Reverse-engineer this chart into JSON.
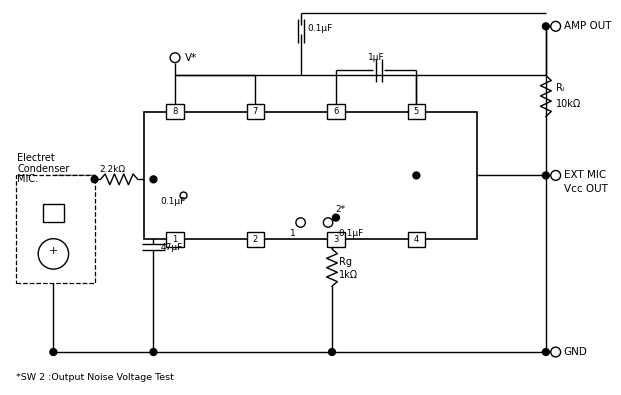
{
  "bg_color": "#ffffff",
  "line_color": "#000000",
  "v_supply_label": "V*",
  "cap_01uF_top_label": "0.1μF",
  "cap_1uF_label": "1μF",
  "rl_label_1": "Rₗ",
  "rl_label_2": "10kΩ",
  "rg_label_1": "Rg",
  "rg_label_2": "1kΩ",
  "r_22k_label": "2.2kΩ",
  "cap_01uF_bot_label": "0.1μF",
  "cap_47uF_label": "47μF",
  "cap_01uF_mid_label": "0.1μF",
  "amp_out_label": "AMP OUT",
  "ext_mic_label_1": "EXT MIC",
  "ext_mic_label_2": "Vcc OUT",
  "gnd_label": "GND",
  "sw_label": "*SW 2 :Output Noise Voltage Test",
  "note_1": "1",
  "note_2": "2*",
  "mic_line1": "Electret",
  "mic_line2": "Condenser",
  "mic_line3": "MIC."
}
